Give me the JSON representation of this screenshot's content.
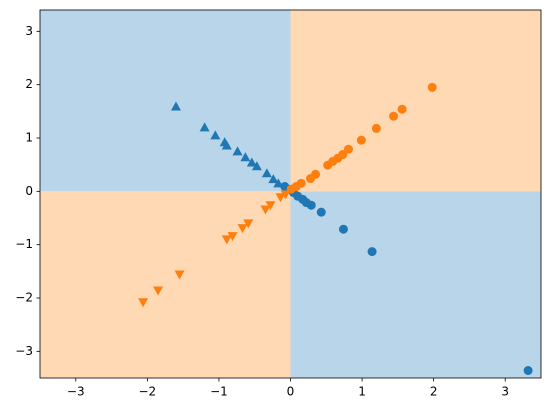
{
  "chart_data": {
    "type": "scatter",
    "xlim": [
      -3.5,
      3.5
    ],
    "ylim": [
      -3.5,
      3.4
    ],
    "xticks": [
      {
        "value": -3,
        "label": "−3"
      },
      {
        "value": -2,
        "label": "−2"
      },
      {
        "value": -1,
        "label": "−1"
      },
      0,
      1,
      2,
      3
    ],
    "yticks": [
      {
        "value": -3,
        "label": "−3"
      },
      {
        "value": -2,
        "label": "−2"
      },
      {
        "value": -1,
        "label": "−1"
      },
      0,
      1,
      2,
      3
    ],
    "regions": [
      {
        "x": [
          -3.5,
          0
        ],
        "y": [
          0,
          3.4
        ],
        "color": "#b9d5e9"
      },
      {
        "x": [
          0,
          3.5
        ],
        "y": [
          0,
          3.4
        ],
        "color": "#ffd8b4"
      },
      {
        "x": [
          -3.5,
          0
        ],
        "y": [
          -3.5,
          0
        ],
        "color": "#ffd8b4"
      },
      {
        "x": [
          0,
          3.5
        ],
        "y": [
          -3.5,
          0
        ],
        "color": "#b9d5e9"
      }
    ],
    "series": [
      {
        "color": "#1f77b4",
        "marker": "triangle-up",
        "x": [
          -1.6,
          -1.2,
          -1.05,
          -0.92,
          -0.89,
          -0.74,
          -0.63,
          -0.54,
          -0.47,
          -0.33,
          -0.24,
          -0.17
        ],
        "values": [
          1.59,
          1.2,
          1.05,
          0.92,
          0.86,
          0.75,
          0.64,
          0.54,
          0.47,
          0.34,
          0.23,
          0.15
        ]
      },
      {
        "color": "#1f77b4",
        "marker": "circle",
        "x": [
          -0.08,
          -0.03,
          0.04,
          0.1,
          0.17,
          0.22,
          0.29,
          0.43,
          0.74,
          1.14,
          3.32
        ],
        "values": [
          0.09,
          0.04,
          -0.02,
          -0.09,
          -0.15,
          -0.21,
          -0.26,
          -0.39,
          -0.71,
          -1.13,
          -3.36
        ]
      },
      {
        "color": "#ff7f0e",
        "marker": "circle",
        "x": [
          0.01,
          0.08,
          0.15,
          0.28,
          0.35,
          0.52,
          0.59,
          0.66,
          0.73,
          0.81,
          0.99,
          1.2,
          1.44,
          1.56,
          1.98
        ],
        "values": [
          0.04,
          0.09,
          0.15,
          0.24,
          0.32,
          0.49,
          0.56,
          0.62,
          0.69,
          0.79,
          0.96,
          1.18,
          1.41,
          1.54,
          1.95
        ]
      },
      {
        "color": "#ff7f0e",
        "marker": "triangle-down",
        "x": [
          -2.06,
          -1.85,
          -1.55,
          -0.89,
          -0.81,
          -0.67,
          -0.59,
          -0.35,
          -0.28,
          -0.14,
          -0.07
        ],
        "values": [
          -2.08,
          -1.86,
          -1.56,
          -0.9,
          -0.84,
          -0.69,
          -0.6,
          -0.34,
          -0.26,
          -0.11,
          -0.06
        ]
      }
    ]
  }
}
